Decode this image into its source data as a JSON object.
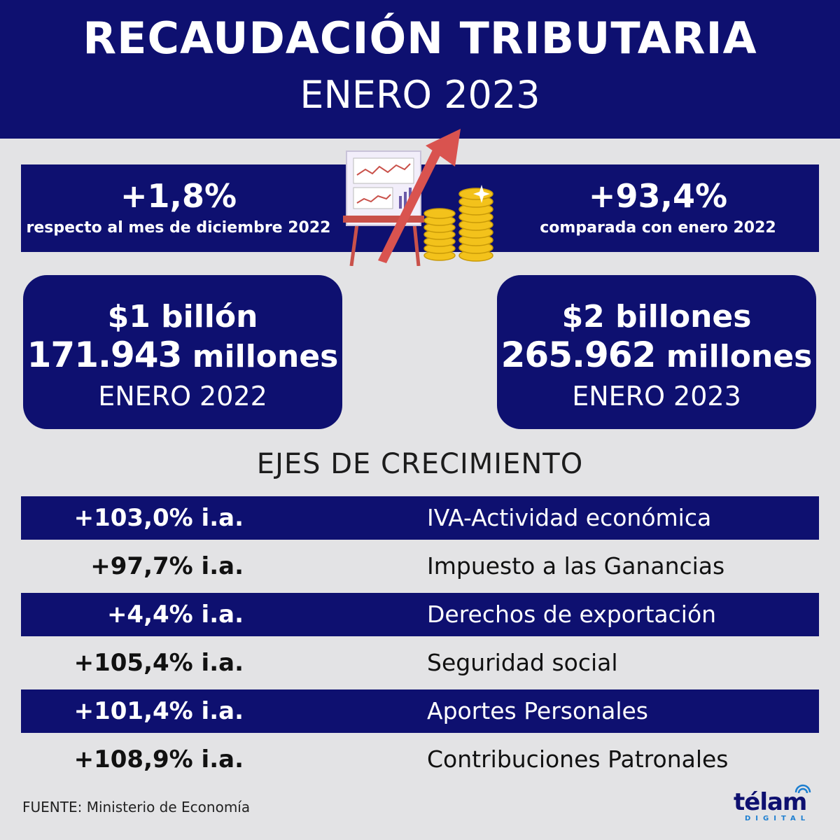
{
  "header": {
    "title": "RECAUDACIÓN TRIBUTARIA",
    "subtitle": "ENERO 2023"
  },
  "variations": {
    "monthly": {
      "value": "+1,8%",
      "label": "respecto al mes de diciembre 2022"
    },
    "yearly": {
      "value": "+93,4%",
      "label": "comparada con enero 2022"
    }
  },
  "totals": {
    "jan2022": {
      "line1": "$1 billón",
      "number": "171.943",
      "unit": "millones",
      "period": "ENERO 2022"
    },
    "jan2023": {
      "line1": "$2 billones",
      "number": "265.962",
      "unit": "millones",
      "period": "ENERO 2023"
    }
  },
  "growth": {
    "title": "EJES DE CRECIMIENTO",
    "rows": [
      {
        "value": "+103,0% i.a.",
        "label": "IVA-Actividad económica"
      },
      {
        "value": "+97,7% i.a.",
        "label": "Impuesto a las Ganancias"
      },
      {
        "value": "+4,4% i.a.",
        "label": "Derechos de exportación"
      },
      {
        "value": "+105,4% i.a.",
        "label": "Seguridad social"
      },
      {
        "value": "+101,4% i.a.",
        "label": "Aportes Personales"
      },
      {
        "value": "+108,9% i.a.",
        "label": "Contribuciones Patronales"
      }
    ]
  },
  "footer": {
    "source": "FUENTE: Ministerio de Economía",
    "logo_word": "télam",
    "logo_sub": "DIGITAL"
  },
  "colors": {
    "navy": "#0e1070",
    "background": "#e3e3e5",
    "arrow": "#d9534f",
    "coins": "#f3c21b"
  }
}
